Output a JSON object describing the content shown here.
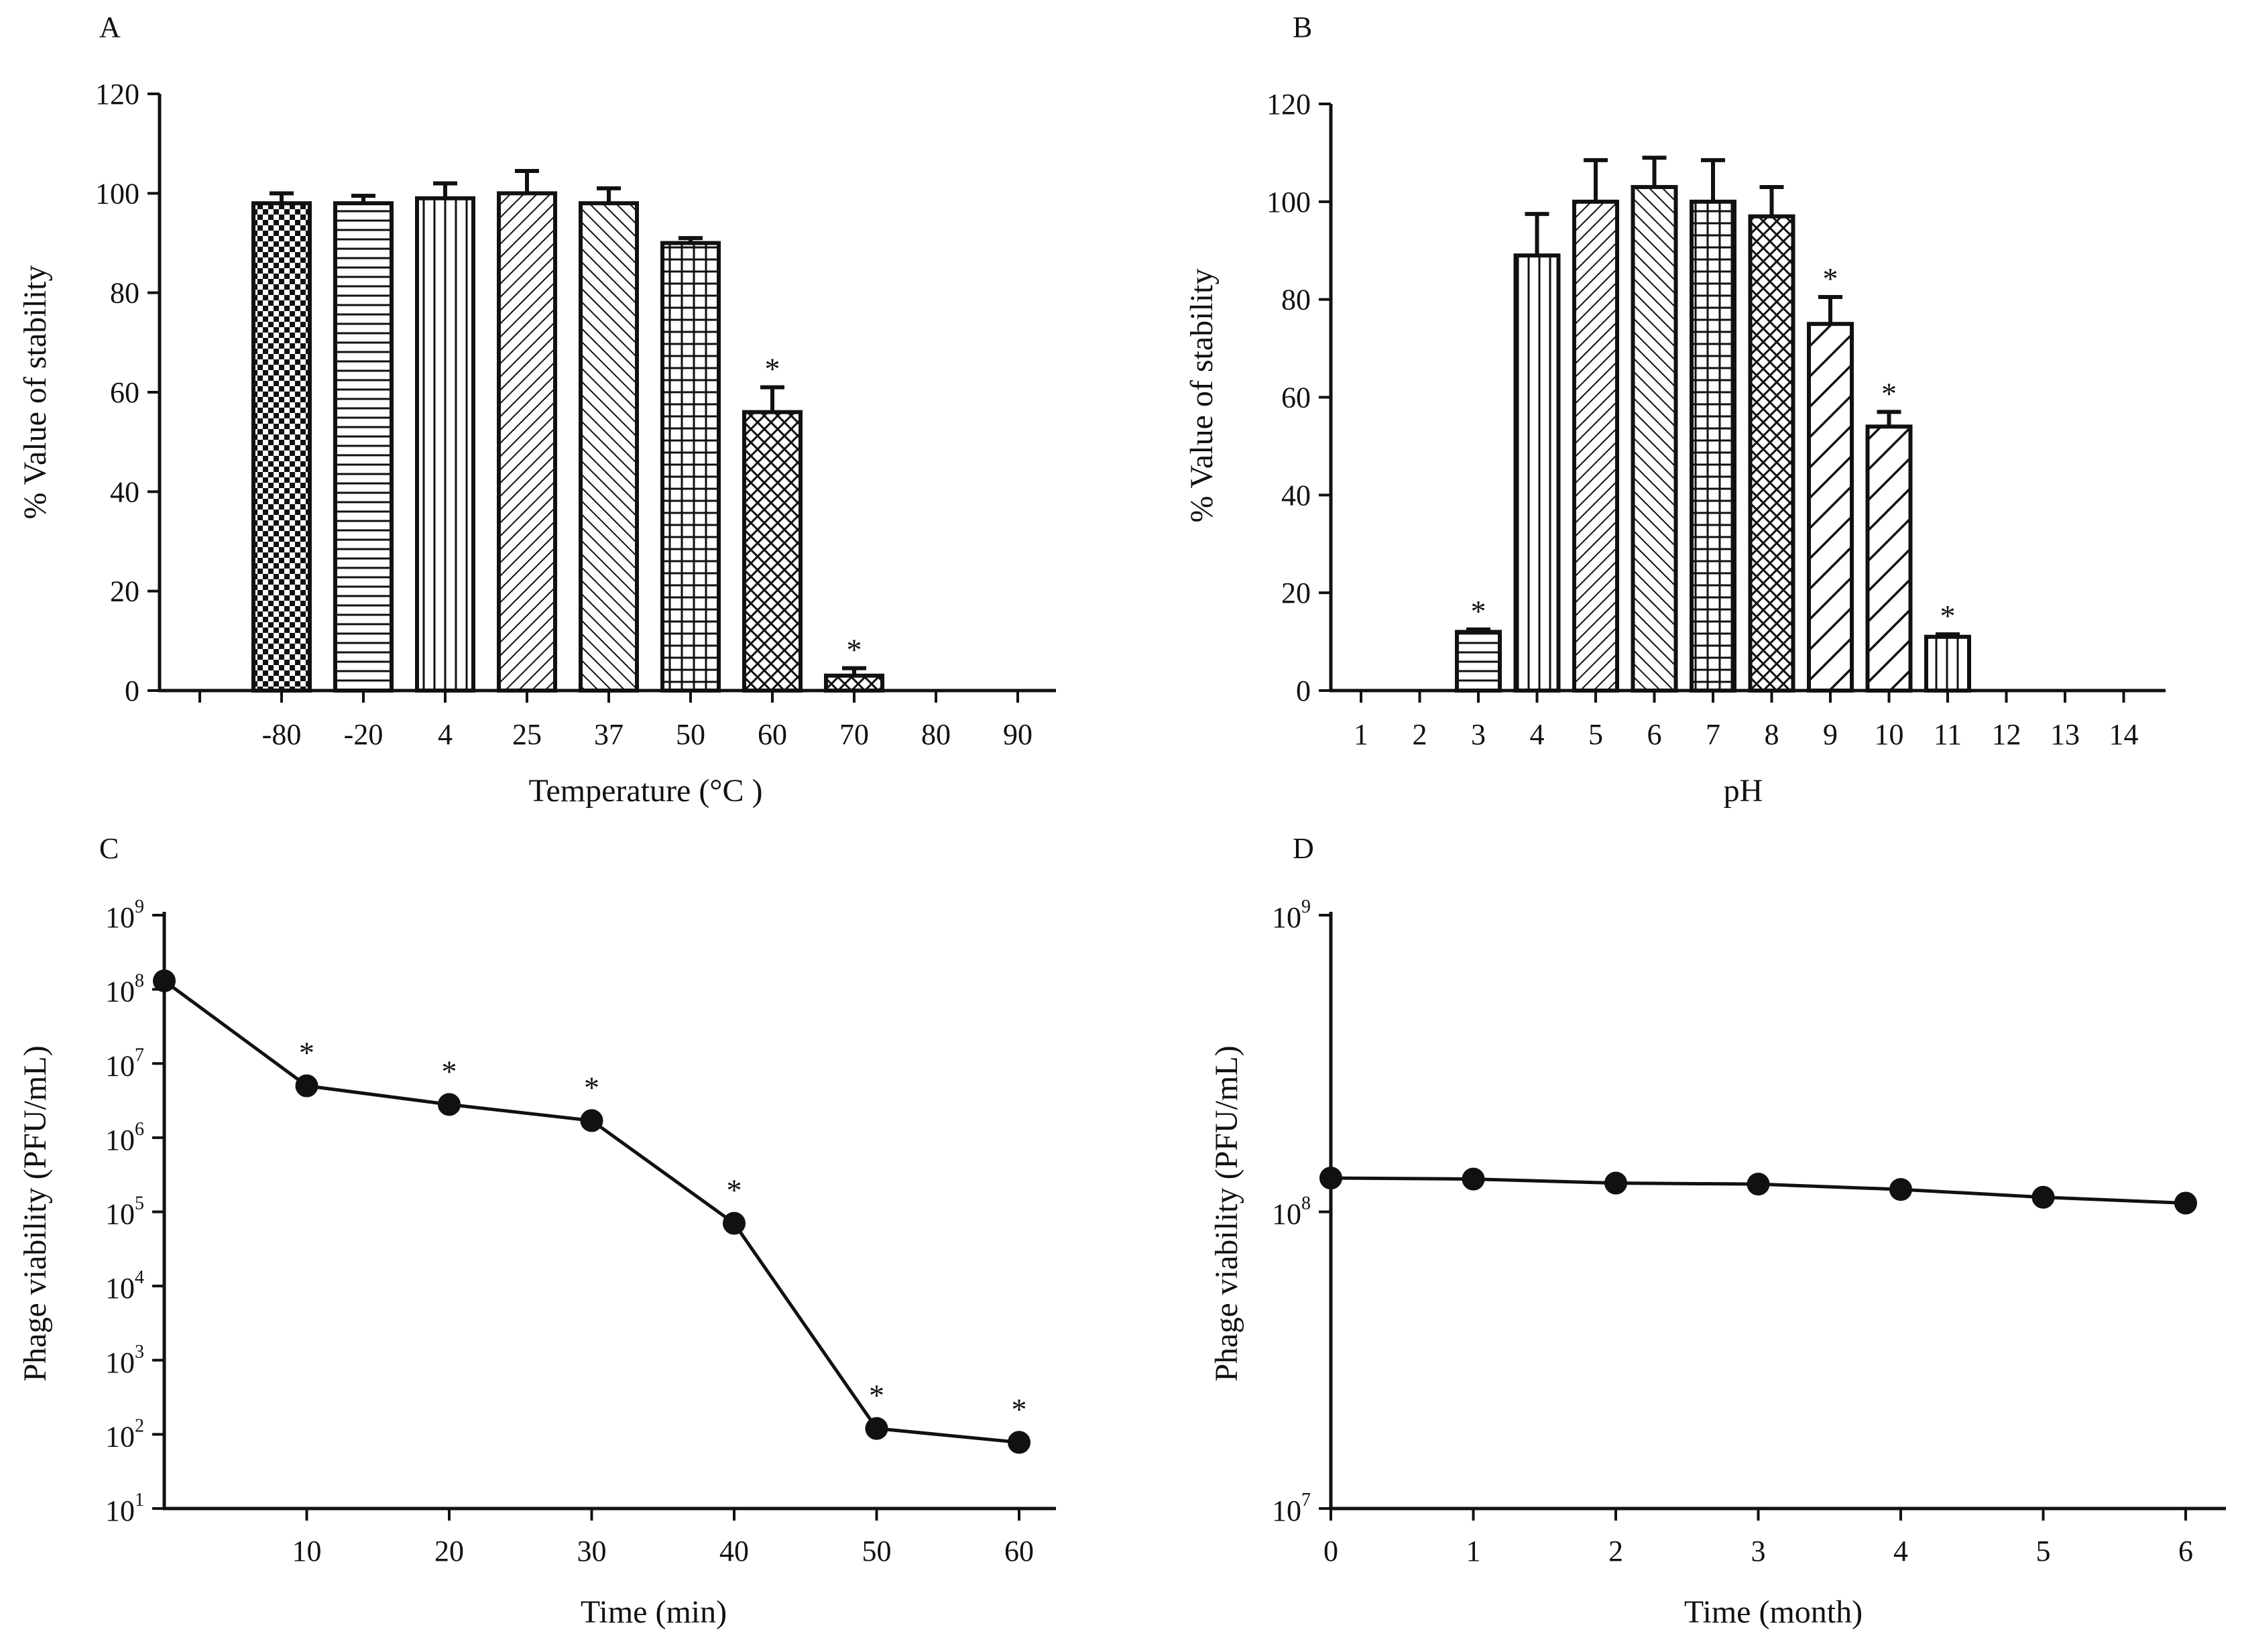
{
  "chart_data": [
    {
      "panel": "A",
      "type": "bar",
      "title": "",
      "xlabel": "Temperature (°C )",
      "ylabel": "% Value of stability",
      "ylim": [
        0,
        120
      ],
      "yticks": [
        "0",
        "20",
        "40",
        "60",
        "80",
        "100",
        "120"
      ],
      "categories": [
        "-80",
        "-20",
        "4",
        "25",
        "37",
        "50",
        "60",
        "70",
        "80",
        "90"
      ],
      "values": [
        98,
        98,
        99,
        100,
        98,
        90,
        56,
        3,
        null,
        null
      ],
      "errors": [
        2,
        1.5,
        3,
        4.5,
        3,
        1,
        5,
        1.5,
        null,
        null
      ],
      "significant": [
        false,
        false,
        false,
        false,
        false,
        false,
        true,
        true,
        false,
        false
      ],
      "patterns": [
        "checker",
        "hlines",
        "vlines",
        "diag-fine",
        "diag-back",
        "grid",
        "diamond",
        "diamond",
        "none",
        "none"
      ],
      "annotation": "*"
    },
    {
      "panel": "B",
      "type": "bar",
      "title": "",
      "xlabel": "pH",
      "ylabel": "% Value of stability",
      "ylim": [
        0,
        120
      ],
      "yticks": [
        "0",
        "20",
        "40",
        "60",
        "80",
        "100",
        "120"
      ],
      "categories": [
        "1",
        "2",
        "3",
        "4",
        "5",
        "6",
        "7",
        "8",
        "9",
        "10",
        "11",
        "12",
        "13",
        "14"
      ],
      "values": [
        null,
        null,
        12,
        89,
        100,
        103,
        100,
        97,
        75,
        54,
        11,
        null,
        null,
        null
      ],
      "errors": [
        null,
        null,
        0.5,
        8.5,
        8.5,
        6,
        8.5,
        6,
        5.5,
        3,
        0.5,
        null,
        null,
        null
      ],
      "significant": [
        false,
        false,
        true,
        false,
        false,
        false,
        false,
        false,
        true,
        true,
        true,
        false,
        false,
        false
      ],
      "patterns": [
        "none",
        "none",
        "hlines",
        "vlines",
        "diag-fine",
        "diag-back",
        "grid",
        "diamond",
        "diag-bold",
        "diag-bold",
        "vlines",
        "none",
        "none",
        "none"
      ],
      "annotation": "*"
    },
    {
      "panel": "C",
      "type": "line",
      "title": "",
      "xlabel": "Time (min)",
      "ylabel": "Phage viability (PFU/mL)",
      "yscale": "log",
      "ylim_exp": [
        1,
        9
      ],
      "xlim": [
        0,
        62
      ],
      "xticks": [
        "10",
        "20",
        "30",
        "40",
        "50",
        "60"
      ],
      "ytick_base": "10",
      "ytick_exps": [
        "1",
        "2",
        "3",
        "4",
        "5",
        "6",
        "7",
        "8",
        "9"
      ],
      "x": [
        0,
        10,
        20,
        30,
        40,
        50,
        60
      ],
      "y": [
        130000000,
        5000000,
        2800000,
        1700000,
        70000,
        120,
        78
      ],
      "significant": [
        false,
        true,
        true,
        true,
        true,
        true,
        true
      ],
      "annotation": "*"
    },
    {
      "panel": "D",
      "type": "line",
      "title": "",
      "xlabel": "Time (month)",
      "ylabel": "Phage viability (PFU/mL)",
      "yscale": "log",
      "ylim_exp": [
        7,
        9
      ],
      "xlim": [
        0,
        6.3
      ],
      "xticks": [
        "0",
        "1",
        "2",
        "3",
        "4",
        "5",
        "6"
      ],
      "ytick_base": "10",
      "ytick_exps": [
        "7",
        "8",
        "9"
      ],
      "x": [
        0,
        1,
        2,
        3,
        4,
        5,
        6
      ],
      "y": [
        130000000,
        129000000,
        125000000,
        124000000,
        119000000,
        112000000,
        107000000
      ],
      "significant": [
        false,
        false,
        false,
        false,
        false,
        false,
        false
      ],
      "annotation": "*"
    }
  ]
}
